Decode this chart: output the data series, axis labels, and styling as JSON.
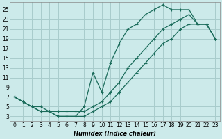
{
  "xlabel": "Humidex (Indice chaleur)",
  "bg_color": "#cceaea",
  "grid_color": "#a8cccc",
  "line_color": "#1a6b5a",
  "xlim": [
    -0.5,
    23.5
  ],
  "ylim": [
    2,
    26.5
  ],
  "xticks": [
    0,
    1,
    2,
    3,
    4,
    5,
    6,
    7,
    8,
    9,
    10,
    11,
    12,
    13,
    14,
    15,
    16,
    17,
    18,
    19,
    20,
    21,
    22,
    23
  ],
  "yticks": [
    3,
    5,
    7,
    9,
    11,
    13,
    15,
    17,
    19,
    21,
    23,
    25
  ],
  "line1_x": [
    0,
    1,
    2,
    3,
    4,
    5,
    6,
    7,
    8,
    9,
    10,
    11,
    12,
    13,
    14,
    15,
    16,
    17,
    18,
    19,
    20,
    21,
    22,
    23
  ],
  "line1_y": [
    7,
    6,
    5,
    4,
    4,
    3,
    3,
    3,
    3,
    4,
    5,
    6,
    8,
    10,
    12,
    14,
    16,
    18,
    19,
    21,
    22,
    22,
    22,
    19
  ],
  "line2_x": [
    0,
    1,
    2,
    3,
    4,
    5,
    6,
    7,
    8,
    9,
    10,
    11,
    12,
    13,
    14,
    15,
    16,
    17,
    18,
    19,
    20,
    21,
    22,
    23
  ],
  "line2_y": [
    7,
    6,
    5,
    4,
    4,
    3,
    3,
    3,
    5,
    12,
    8,
    14,
    18,
    21,
    22,
    24,
    25,
    26,
    25,
    25,
    25,
    22,
    22,
    19
  ],
  "line3_x": [
    0,
    1,
    2,
    3,
    4,
    5,
    6,
    7,
    8,
    9,
    10,
    11,
    12,
    13,
    14,
    15,
    16,
    17,
    18,
    19,
    20,
    21,
    22,
    23
  ],
  "line3_y": [
    7,
    6,
    5,
    5,
    4,
    4,
    4,
    4,
    4,
    5,
    6,
    8,
    10,
    13,
    15,
    17,
    19,
    21,
    22,
    23,
    24,
    22,
    22,
    19
  ]
}
